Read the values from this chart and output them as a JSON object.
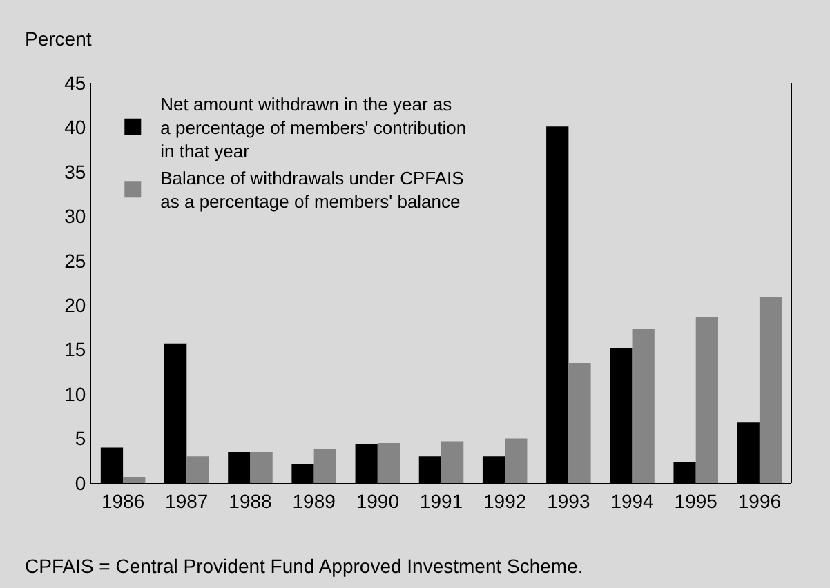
{
  "chart_data": {
    "type": "bar",
    "ylabel": "Percent",
    "categories": [
      "1986",
      "1987",
      "1988",
      "1989",
      "1990",
      "1991",
      "1992",
      "1993",
      "1994",
      "1995",
      "1996"
    ],
    "series": [
      {
        "name": "Net amount withdrawn in the year as\na percentage of members' contribution\nin that year",
        "color": "#000000",
        "values": [
          4.0,
          15.7,
          3.5,
          2.1,
          4.4,
          3.0,
          3.0,
          40.1,
          15.2,
          2.4,
          6.8
        ]
      },
      {
        "name": "Balance of withdrawals under CPFAIS\nas a percentage of members' balance",
        "color": "#858585",
        "values": [
          0.7,
          3.0,
          3.5,
          3.8,
          4.5,
          4.7,
          5.0,
          13.5,
          17.3,
          18.7,
          20.9
        ]
      }
    ],
    "ylim": [
      0,
      45
    ],
    "yticks": [
      0,
      5,
      10,
      15,
      20,
      25,
      30,
      35,
      40,
      45
    ],
    "grid": false,
    "legend": "top left",
    "annotations": [
      "CPFAIS = Central Provident Fund Approved Investment Scheme."
    ]
  }
}
